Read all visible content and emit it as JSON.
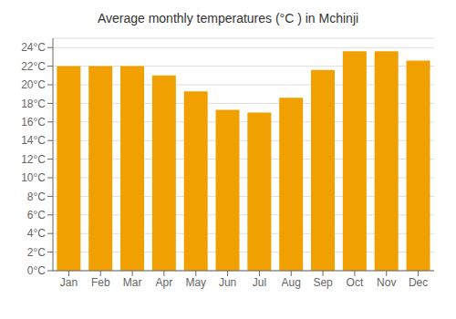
{
  "chart_data": {
    "type": "bar",
    "title": "Average monthly temperatures (°C ) in Mchinji",
    "categories": [
      "Jan",
      "Feb",
      "Mar",
      "Apr",
      "May",
      "Jun",
      "Jul",
      "Aug",
      "Sep",
      "Oct",
      "Nov",
      "Dec"
    ],
    "values": [
      22,
      22,
      22,
      21,
      19.3,
      17.3,
      17,
      18.6,
      21.6,
      23.6,
      23.6,
      22.6
    ],
    "color": "#F0A000",
    "ylim": [
      0,
      25
    ],
    "yticks": [
      {
        "value": 0,
        "label": "0°C"
      },
      {
        "value": 2,
        "label": "2°C"
      },
      {
        "value": 4,
        "label": "4°C"
      },
      {
        "value": 6,
        "label": "6°C"
      },
      {
        "value": 8,
        "label": "8°C"
      },
      {
        "value": 10,
        "label": "10°C"
      },
      {
        "value": 12,
        "label": "12°C"
      },
      {
        "value": 14,
        "label": "14°C"
      },
      {
        "value": 16,
        "label": "16°C"
      },
      {
        "value": 18,
        "label": "18°C"
      },
      {
        "value": 20,
        "label": "20°C"
      },
      {
        "value": 22,
        "label": "22°C"
      },
      {
        "value": 24,
        "label": "24°C"
      }
    ],
    "grid": true
  }
}
